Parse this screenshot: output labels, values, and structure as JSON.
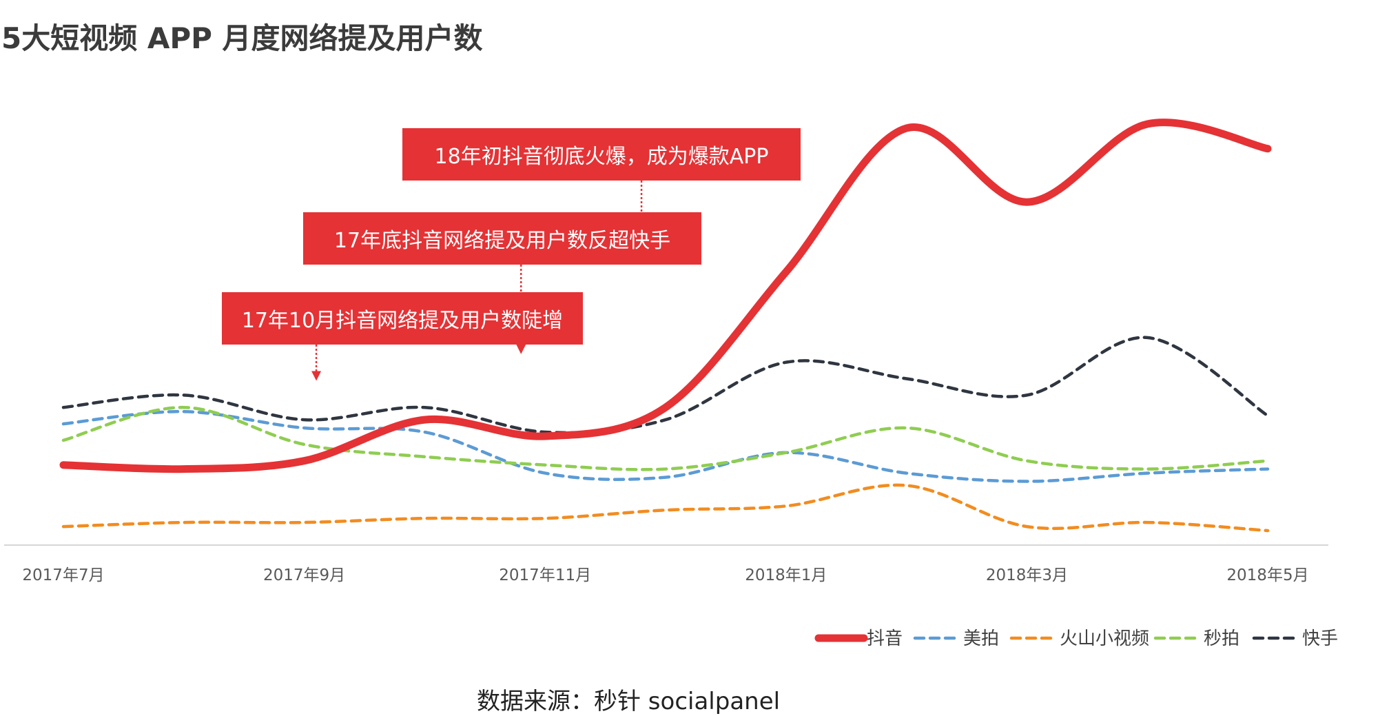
{
  "title": "5大短视频 APP 月度网络提及用户数",
  "source": "数据来源：秒针 socialpanel",
  "annotations": [
    {
      "text": "18年初抖音彻底火爆，成为爆款APP",
      "x": 11.8,
      "y": 70
    },
    {
      "text": "17年底抖音网络提及用户数反超快手",
      "x": 10.8,
      "y": 44
    },
    {
      "text": "17年10月抖音网络提及用户数陡增",
      "x": 9.1,
      "y": 37.5
    }
  ],
  "chart_data": {
    "type": "line",
    "title": "5大短视频 APP 月度网络提及用户数",
    "xlabel": "",
    "ylabel": "",
    "x": [
      7,
      8,
      9,
      10,
      11,
      12,
      13,
      14,
      15,
      16,
      17
    ],
    "x_tick_labels": [
      "2017年7月",
      "2017年9月",
      "2017年11月",
      "2018年1月",
      "2018年3月",
      "2018年5月"
    ],
    "x_tick_positions": [
      7,
      9,
      11,
      13,
      15,
      17
    ],
    "ylim": [
      0,
      100
    ],
    "grid": false,
    "legend": "bottom-right",
    "series": [
      {
        "name": "抖音",
        "color": "#e53235",
        "style": "solid",
        "values": [
          17,
          16,
          18,
          28,
          24,
          31,
          64,
          99,
          81,
          100,
          94
        ]
      },
      {
        "name": "美拍",
        "color": "#5b9bd5",
        "style": "dashed",
        "values": [
          27,
          30,
          26,
          25,
          15,
          14,
          20,
          15,
          13,
          15,
          16
        ]
      },
      {
        "name": "火山小视频",
        "color": "#f28c1f",
        "style": "dashed",
        "values": [
          2,
          3,
          3,
          4,
          4,
          6,
          7,
          12,
          2,
          3,
          1
        ]
      },
      {
        "name": "秒拍",
        "color": "#8fcd50",
        "style": "dashed",
        "values": [
          23,
          31,
          22,
          19,
          17,
          16,
          20,
          26,
          18,
          16,
          18
        ]
      },
      {
        "name": "快手",
        "color": "#2f3640",
        "style": "dashed",
        "values": [
          31,
          34,
          28,
          31,
          25,
          28,
          42,
          38,
          34,
          48,
          29
        ]
      }
    ]
  }
}
